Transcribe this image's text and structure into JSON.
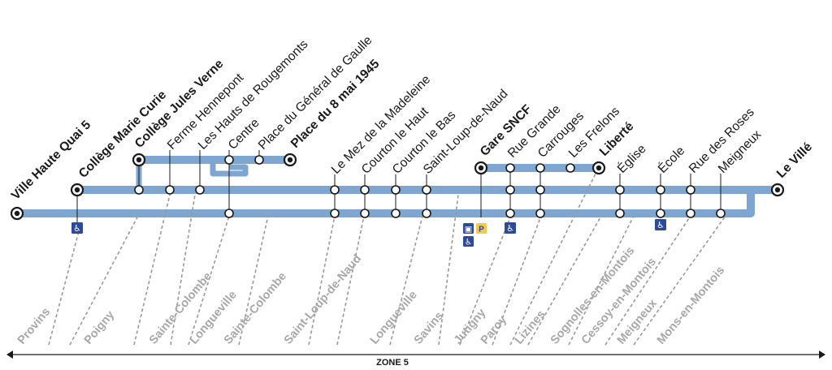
{
  "stations": {
    "ville_haute_quai_5": "Ville Haute Quai 5",
    "college_marie_curie": "Collège Marie Curie",
    "college_jules_verne": "Collège Jules Verne",
    "ferme_hennepont": "Ferme Hennepont",
    "hauts_de_rougemonts": "Les Hauts de Rougemonts",
    "centre": "Centre",
    "place_general_de_gaulle": "Place du Général de Gaulle",
    "place_8_mai_1945": "Place du 8 mai 1945",
    "mez_de_la_madeleine": "Le Mez de la Madeleine",
    "courton_le_haut": "Courton le Haut",
    "courton_le_bas": "Courton le Bas",
    "saint_loup_de_naud": "Saint-Loup-de-Naud",
    "gare_sncf": "Gare SNCF",
    "rue_grande": "Rue Grande",
    "carrouges": "Carrouges",
    "les_frelons": "Les Frelons",
    "liberte": "Liberté",
    "eglise": "Église",
    "ecole": "École",
    "rue_des_roses": "Rue des Roses",
    "meigneux": "Meigneux",
    "le_ville": "Le Villé"
  },
  "towns": [
    "Provins",
    "Poigny",
    "Sainte-Colombe",
    "Longueville",
    "Sainte-Colombe",
    "Saint-Loup-de-Naud",
    "Longueville",
    "Savins",
    "Jutigny",
    "Paroy",
    "Lizines",
    "Sognolles-en-Montois",
    "Cessoy-en-Montois",
    "Meigneux",
    "Mons-en-Montois"
  ],
  "zone_label": "ZONE 5",
  "colors": {
    "line": "#7ea6d0",
    "towns": "#a8a8a8",
    "accessibility": "#2c4a9a",
    "parking": "#f7c948"
  },
  "icons": [
    "wheelchair-icon",
    "bus-icon",
    "parking-icon"
  ],
  "icon_glyphs": {
    "wheelchair": "♿",
    "bus": "▣",
    "parking": "P"
  }
}
